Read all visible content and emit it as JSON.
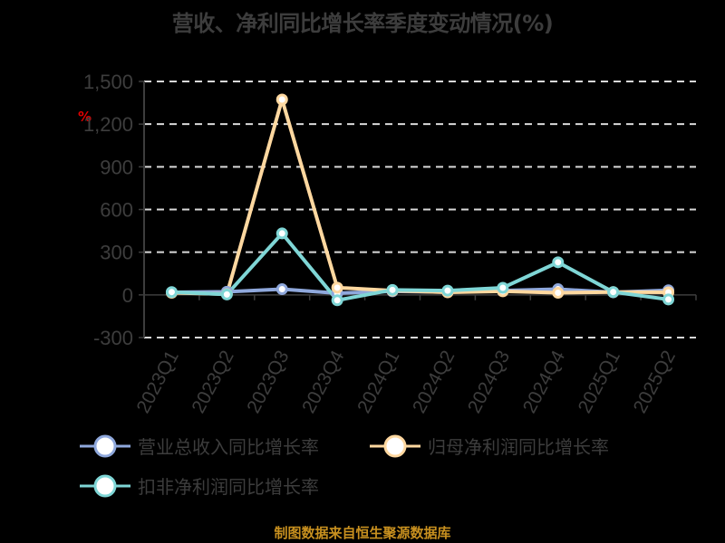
{
  "title": "营收、净利同比增长率季度变动情况(%)",
  "unit_label": "%",
  "footer": "制图数据来自恒生聚源数据库",
  "colors": {
    "revenue": "#8fa8dc",
    "parent_net_profit": "#ffd8a0",
    "deducted_net_profit": "#7fd6d6",
    "axis": "#3d3d3d",
    "grid": "#d9d9d9",
    "footer": "#c8901f"
  },
  "legend": [
    {
      "key": "revenue",
      "label": "营业总收入同比增长率"
    },
    {
      "key": "parent_net_profit",
      "label": "归母净利润同比增长率"
    },
    {
      "key": "deducted_net_profit",
      "label": "扣非净利润同比增长率"
    }
  ],
  "chart_data": {
    "type": "line",
    "title": "营收、净利同比增长率季度变动情况(%)",
    "xlabel": "",
    "ylabel": "%",
    "ylim": [
      -300,
      1500
    ],
    "yticks": [
      -300,
      0,
      300,
      600,
      900,
      1200,
      1500
    ],
    "ytick_labels": [
      "-300",
      "0",
      "300",
      "600",
      "900",
      "1,200",
      "1,500"
    ],
    "grid": true,
    "legend_position": "bottom",
    "categories": [
      "2023Q1",
      "2023Q2",
      "2023Q3",
      "2023Q4",
      "2024Q1",
      "2024Q2",
      "2024Q3",
      "2024Q4",
      "2025Q1",
      "2025Q2"
    ],
    "series": [
      {
        "name": "营业总收入同比增长率",
        "values": [
          18,
          22,
          40,
          12,
          25,
          20,
          30,
          40,
          18,
          32
        ]
      },
      {
        "name": "归母净利润同比增长率",
        "values": [
          15,
          5,
          1373,
          51,
          30,
          18,
          25,
          15,
          20,
          18
        ]
      },
      {
        "name": "扣非净利润同比增长率",
        "values": [
          20,
          3,
          432,
          -38,
          35,
          30,
          50,
          229,
          20,
          -32
        ]
      }
    ]
  }
}
